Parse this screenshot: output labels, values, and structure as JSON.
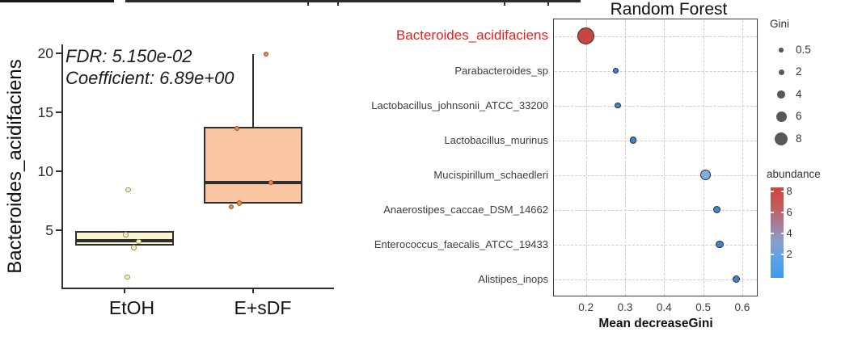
{
  "chart_data": [
    {
      "type": "box",
      "y_axis_title": "Bacteroides_acidifaciens",
      "annotations": [
        "FDR: 5.150e-02",
        "Coefficient: 6.89e+00"
      ],
      "yticks": [
        5,
        10,
        15,
        20
      ],
      "ylim": [
        0,
        20.5
      ],
      "categories": [
        "EtOH",
        "E+sDF"
      ],
      "groups": [
        {
          "category": "EtOH",
          "q1": 3.65,
          "median": 4.1,
          "q3": 4.9,
          "whisker_low": 3.65,
          "whisker_high": 4.9,
          "fill": "#f8f5d0",
          "point_fill": "#f3eec6",
          "point_stroke": "#9b9356",
          "points": [
            {
              "value": 8.4,
              "dx": 5
            },
            {
              "value": 4.6,
              "dx": 2
            },
            {
              "value": 4.0,
              "dx": 18
            },
            {
              "value": 3.5,
              "dx": 12
            },
            {
              "value": 1.0,
              "dx": 4
            }
          ]
        },
        {
          "category": "E+sDF",
          "q1": 7.2,
          "median": 9.0,
          "q3": 13.7,
          "whisker_low": 7.2,
          "whisker_high": 19.9,
          "fill": "#f9c5a3",
          "point_fill": "#e9874d",
          "point_stroke": "#a35622",
          "points": [
            {
              "value": 19.9,
              "dx": 16
            },
            {
              "value": 13.6,
              "dx": -20
            },
            {
              "value": 9.0,
              "dx": 22
            },
            {
              "value": 7.25,
              "dx": -17
            },
            {
              "value": 6.95,
              "dx": -27
            }
          ]
        }
      ]
    },
    {
      "type": "scatter",
      "title": "Random Forest",
      "xlabel": "Mean decreaseGini",
      "xticks": [
        "0.2",
        "0.3",
        "0.4",
        "0.5",
        "0.6"
      ],
      "xlim": [
        0.12,
        0.64
      ],
      "rows": [
        {
          "label": "Bacteroides_acidifaciens",
          "mean_decrease_gini": 0.2,
          "gini": 8,
          "abundance": 8,
          "dot_color": "#c9453f",
          "diameter": 21,
          "label_color": "#ee1d1d",
          "highlighted": true
        },
        {
          "label": "Parabacteroides_sp",
          "mean_decrease_gini": 0.276,
          "gini": 1.5,
          "abundance": 1.5,
          "dot_color": "#3d85cc",
          "diameter": 7.5
        },
        {
          "label": "Lactobacillus_johnsonii_ATCC_33200",
          "mean_decrease_gini": 0.281,
          "gini": 1.5,
          "abundance": 1.5,
          "dot_color": "#3d85cc",
          "diameter": 7.5
        },
        {
          "label": "Lactobacillus_murinus",
          "mean_decrease_gini": 0.321,
          "gini": 2,
          "abundance": 1.5,
          "dot_color": "#3d85cc",
          "diameter": 8.5
        },
        {
          "label": "Mucispirillum_schaedleri",
          "mean_decrease_gini": 0.507,
          "gini": 4,
          "abundance": 2.5,
          "dot_color": "#7dafdd",
          "diameter": 13
        },
        {
          "label": "Anaerostipes_caccae_DSM_14662",
          "mean_decrease_gini": 0.536,
          "gini": 2.2,
          "abundance": 1.5,
          "dot_color": "#3d85cc",
          "diameter": 9
        },
        {
          "label": "Enterococcus_faecalis_ATCC_19433",
          "mean_decrease_gini": 0.542,
          "gini": 2.3,
          "abundance": 1.5,
          "dot_color": "#3d85cc",
          "diameter": 9.5
        },
        {
          "label": "Alistipes_inops",
          "mean_decrease_gini": 0.585,
          "gini": 2.2,
          "abundance": 1.5,
          "dot_color": "#3d85cc",
          "diameter": 9
        }
      ],
      "size_legend": {
        "title": "Gini",
        "labels": [
          "0.5",
          "2",
          "4",
          "6",
          "8"
        ],
        "diameters": [
          5.5,
          7,
          9.5,
          13,
          16.5
        ],
        "circle_color": "#585858"
      },
      "color_legend": {
        "title": "abundance",
        "labels": [
          "8",
          "6",
          "4",
          "2"
        ],
        "gradient": [
          "#d0453d",
          "#c25a58",
          "#a87b95",
          "#88a0cd",
          "#5ba1e6",
          "#3f99f2"
        ]
      }
    }
  ]
}
